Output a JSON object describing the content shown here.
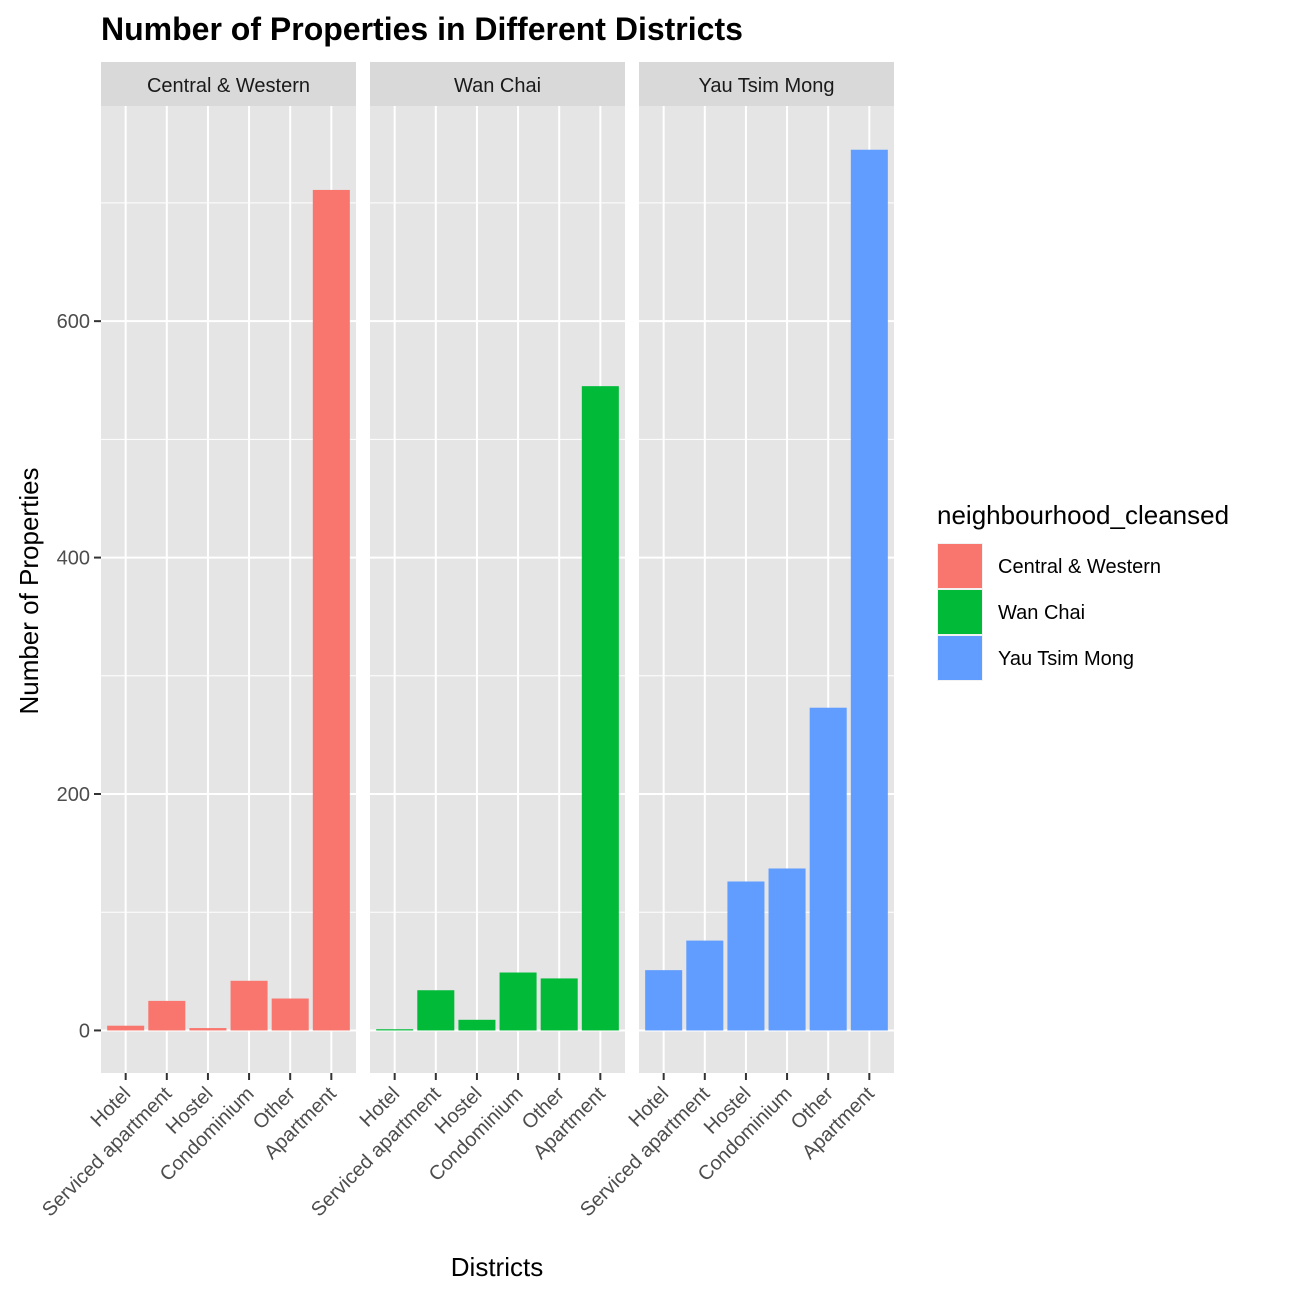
{
  "chart_data": {
    "type": "bar",
    "title": "Number of Properties in Different Districts",
    "xlabel": "Districts",
    "ylabel": "Number of Properties",
    "ylim": [
      -36,
      782
    ],
    "yticks": [
      0,
      200,
      400,
      600
    ],
    "categories": [
      "Hotel",
      "Serviced apartment",
      "Hostel",
      "Condominium",
      "Other",
      "Apartment"
    ],
    "facets": [
      {
        "name": "Central & Western",
        "color": "#F8766D",
        "values": [
          4,
          25,
          2,
          42,
          27,
          711
        ]
      },
      {
        "name": "Wan Chai",
        "color": "#00BA38",
        "values": [
          1,
          34,
          9,
          49,
          44,
          545
        ]
      },
      {
        "name": "Yau Tsim Mong",
        "color": "#619CFF",
        "values": [
          51,
          76,
          126,
          137,
          273,
          745
        ]
      }
    ],
    "legend": {
      "title": "neighbourhood_cleansed",
      "position": "right"
    },
    "grid": true,
    "panel_background": "#E5E5E5",
    "strip_background": "#D9D9D9"
  }
}
